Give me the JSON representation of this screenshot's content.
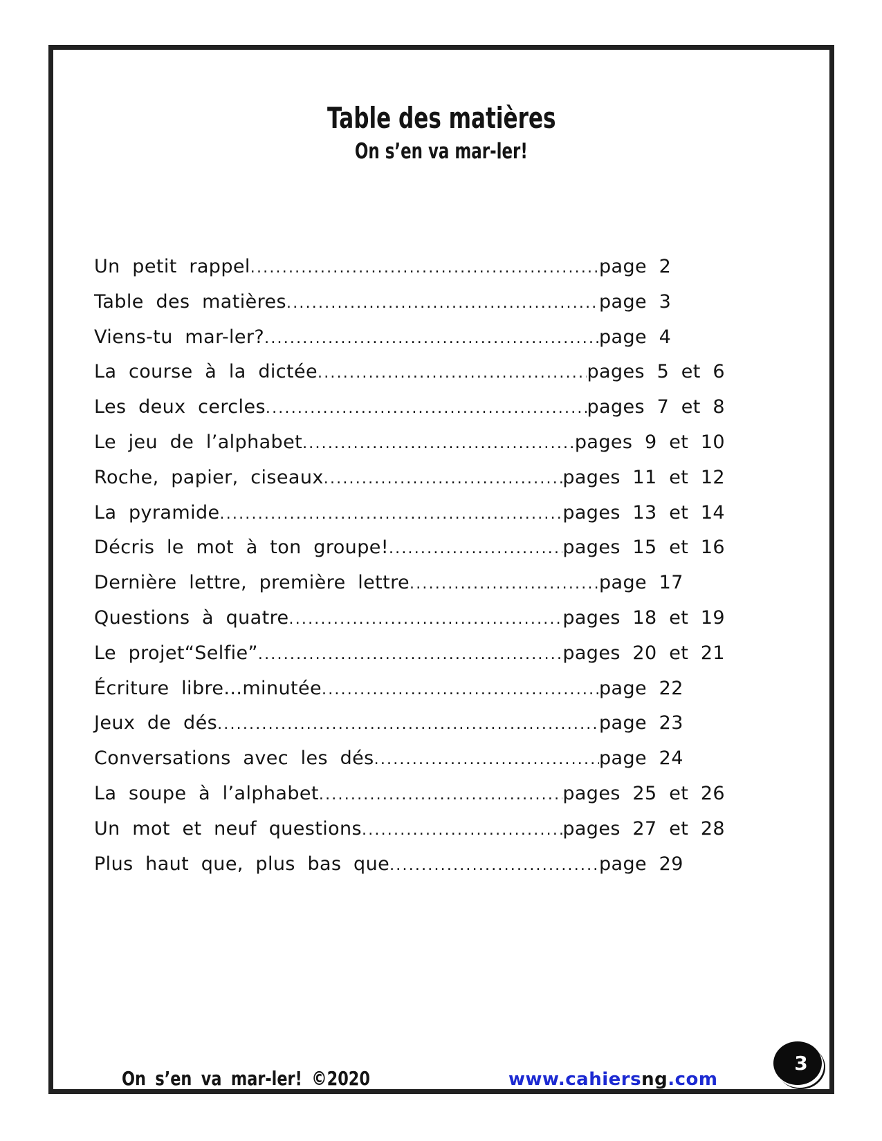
{
  "header": {
    "title": "Table des matières",
    "subtitle": "On s’en va mar-ler!"
  },
  "toc": {
    "entries": [
      {
        "label": "Un petit rappel",
        "page": "page 2"
      },
      {
        "label": "Table des matières",
        "page": "page 3"
      },
      {
        "label": "Viens-tu mar-ler?",
        "page": "page 4"
      },
      {
        "label": "La course à la dictée",
        "page": "pages 5 et 6"
      },
      {
        "label": "Les deux cercles",
        "page": "pages 7 et 8"
      },
      {
        "label": "Le jeu de l’alphabet",
        "page": "pages 9 et 10"
      },
      {
        "label": "Roche, papier, ciseaux",
        "page": "pages 11 et 12"
      },
      {
        "label": "La pyramide",
        "page": "pages 13 et 14"
      },
      {
        "label": "Décris le mot à ton groupe!",
        "page": "pages 15 et 16"
      },
      {
        "label": "Dernière lettre, première lettre",
        "page": "page 17"
      },
      {
        "label": "Questions à quatre",
        "page": "pages 18 et 19"
      },
      {
        "label": "Le projet“Selfie”",
        "page": "pages 20 et 21"
      },
      {
        "label": "Écriture libre...minutée",
        "page": "page 22"
      },
      {
        "label": "Jeux de dés",
        "page": "page 23"
      },
      {
        "label": "Conversations avec les dés",
        "page": "page 24"
      },
      {
        "label": "La soupe à l’alphabet",
        "page": "pages 25 et 26"
      },
      {
        "label": "Un mot et neuf questions",
        "page": "pages 27 et 28"
      },
      {
        "label": "Plus haut que, plus bas que",
        "page": "page 29"
      }
    ]
  },
  "footer": {
    "copyright": "On s’en va mar-ler! ©2020",
    "url_prefix": "www.cahiers",
    "url_brand": "ng",
    "url_suffix": ".com",
    "page_number": "3"
  },
  "colors": {
    "link_blue": "#1c2ad2",
    "text": "#141414",
    "frame_border": "#212121"
  }
}
